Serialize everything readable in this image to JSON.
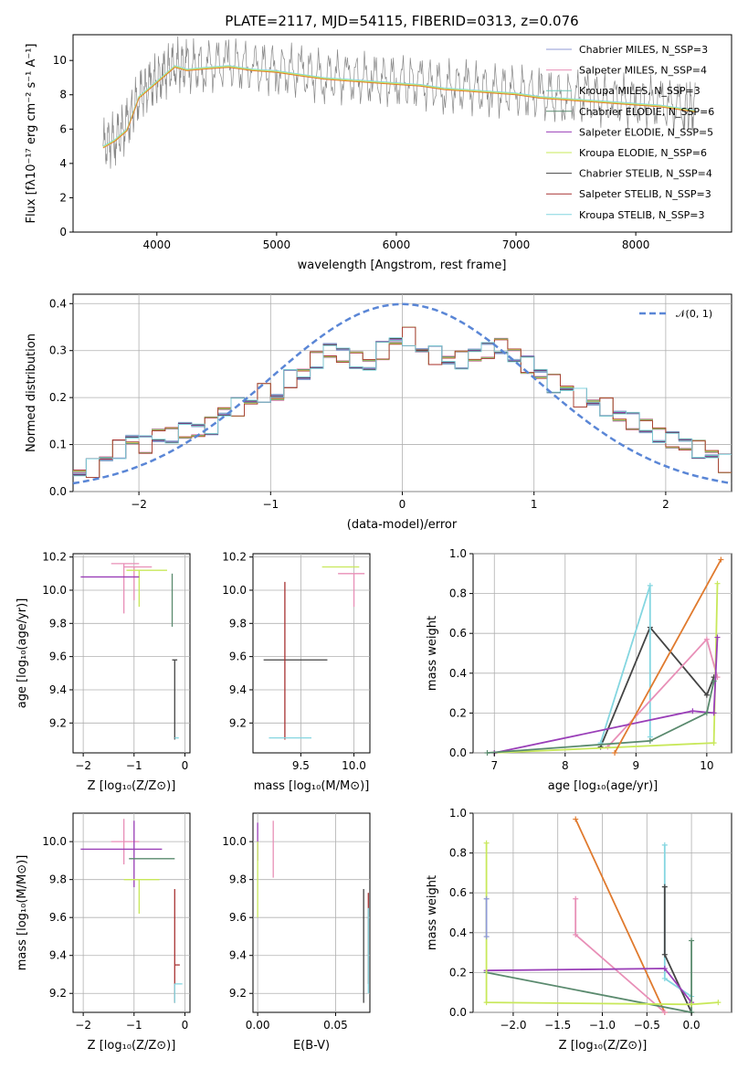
{
  "figure": {
    "title": "PLATE=2117, MJD=54115, FIBERID=0313, z=0.076"
  },
  "colors": {
    "models": [
      "#8f9ad6",
      "#e88fb7",
      "#6fc6b5",
      "#5a8a6e",
      "#9a3fb8",
      "#c8e85a",
      "#444444",
      "#a83333",
      "#84d6e0"
    ],
    "spectrum": "#888888",
    "orange": "#e07a2e",
    "normal": "#5a86d6"
  },
  "chart_data": [
    {
      "id": "spectrum",
      "type": "line",
      "title": "PLATE=2117, MJD=54115, FIBERID=0313, z=0.076",
      "xlabel": "wavelength [Angstrom, rest frame]",
      "ylabel": "Flux [fλ10⁻¹⁷ erg cm⁻² s⁻¹ A⁻¹]",
      "xlim": [
        3300,
        8800
      ],
      "ylim": [
        0,
        11.5
      ],
      "xticks": [
        "4000",
        "5000",
        "6000",
        "7000",
        "8000"
      ],
      "yticks": [
        "0",
        "2",
        "4",
        "6",
        "8",
        "10"
      ],
      "legend_placement": "right",
      "legend": [
        "Chabrier MILES, N_SSP=3",
        "Salpeter MILES, N_SSP=4",
        "Kroupa MILES, N_SSP=3",
        "Chabrier ELODIE, N_SSP=6",
        "Salpeter ELODIE, N_SSP=5",
        "Kroupa ELODIE, N_SSP=6",
        "Chabrier STELIB, N_SSP=4",
        "Salpeter STELIB, N_SSP=3",
        "Kroupa STELIB, N_SSP=3"
      ],
      "series": [
        {
          "name": "data",
          "x": [
            3550,
            3650,
            3750,
            3850,
            3950,
            4050,
            4150,
            4250,
            4400,
            4600,
            4800,
            5000,
            5200,
            5400,
            5600,
            5800,
            6000,
            6200,
            6400,
            6600,
            6800,
            7000,
            7200,
            7400,
            7600,
            7800,
            8000,
            8200,
            8400,
            8500
          ],
          "y": [
            5.0,
            5.5,
            6.2,
            8.0,
            8.6,
            9.2,
            9.8,
            9.6,
            9.7,
            9.8,
            9.6,
            9.5,
            9.3,
            9.1,
            9.0,
            8.9,
            8.8,
            8.7,
            8.5,
            8.4,
            8.3,
            8.2,
            8.0,
            7.9,
            7.8,
            7.7,
            7.6,
            7.5,
            7.3,
            7.2
          ]
        },
        {
          "name": "model",
          "x": [
            3550,
            3650,
            3750,
            3850,
            3950,
            4050,
            4150,
            4250,
            4400,
            4600,
            4800,
            5000,
            5200,
            5400,
            5600,
            5800,
            6000,
            6200,
            6400,
            6600,
            6800,
            7000,
            7200,
            7400,
            7600,
            7800,
            8000,
            8200,
            8400,
            8500
          ],
          "y": [
            5.0,
            5.4,
            6.0,
            7.9,
            8.5,
            9.1,
            9.7,
            9.5,
            9.6,
            9.7,
            9.5,
            9.4,
            9.2,
            9.0,
            8.9,
            8.8,
            8.7,
            8.6,
            8.4,
            8.3,
            8.2,
            8.1,
            7.9,
            7.8,
            7.7,
            7.6,
            7.5,
            7.4,
            7.2,
            7.1
          ]
        }
      ]
    },
    {
      "id": "residuals",
      "type": "line",
      "xlabel": "(data-model)/error",
      "ylabel": "Normed distribution",
      "xlim": [
        -2.5,
        2.5
      ],
      "ylim": [
        0,
        0.42
      ],
      "xticks": [
        "−2",
        "−1",
        "0",
        "1",
        "2"
      ],
      "yticks": [
        "0.0",
        "0.1",
        "0.2",
        "0.3",
        "0.4"
      ],
      "grid": true,
      "legend_placement": "top-right",
      "legend": [
        "𝒩(0, 1)"
      ],
      "bin_width": 0.1,
      "x": [
        -2.5,
        -2.4,
        -2.3,
        -2.2,
        -2.1,
        -2.0,
        -1.9,
        -1.8,
        -1.7,
        -1.6,
        -1.5,
        -1.4,
        -1.3,
        -1.2,
        -1.1,
        -1.0,
        -0.9,
        -0.8,
        -0.7,
        -0.6,
        -0.5,
        -0.4,
        -0.3,
        -0.2,
        -0.1,
        0.0,
        0.1,
        0.2,
        0.3,
        0.4,
        0.5,
        0.6,
        0.7,
        0.8,
        0.9,
        1.0,
        1.1,
        1.2,
        1.3,
        1.4,
        1.5,
        1.6,
        1.7,
        1.8,
        1.9,
        2.0,
        2.1,
        2.2,
        2.3,
        2.4
      ],
      "series": [
        {
          "name": "histogram",
          "values": [
            0.04,
            0.05,
            0.07,
            0.09,
            0.11,
            0.1,
            0.12,
            0.12,
            0.13,
            0.13,
            0.14,
            0.17,
            0.18,
            0.19,
            0.21,
            0.2,
            0.24,
            0.25,
            0.28,
            0.3,
            0.29,
            0.28,
            0.27,
            0.3,
            0.32,
            0.33,
            0.3,
            0.29,
            0.28,
            0.28,
            0.29,
            0.3,
            0.31,
            0.29,
            0.27,
            0.25,
            0.23,
            0.22,
            0.2,
            0.19,
            0.18,
            0.16,
            0.15,
            0.14,
            0.12,
            0.11,
            0.1,
            0.09,
            0.08,
            0.06
          ]
        }
      ]
    },
    {
      "id": "age-vs-Z",
      "type": "scatter",
      "xlabel": "Z [log₁₀(Z/Z⊙)]",
      "ylabel": "age  [log₁₀(age/yr)]",
      "xlim": [
        -2.2,
        0.1
      ],
      "ylim": [
        9.02,
        10.22
      ],
      "xticks": [
        "−2",
        "−1",
        "0"
      ],
      "yticks": [
        "9.2",
        "9.4",
        "9.6",
        "9.8",
        "10.0",
        "10.2"
      ],
      "grid": true,
      "points": [
        {
          "x": -1.2,
          "y": 10.16,
          "xerr": [
            0.25,
            0.3
          ],
          "yerr": [
            0.3,
            0.0
          ],
          "color": 1
        },
        {
          "x": -1.0,
          "y": 10.14,
          "xerr": [
            0.2,
            0.35
          ],
          "yerr": [
            0.2,
            0.0
          ],
          "color": 1
        },
        {
          "x": -0.9,
          "y": 10.12,
          "xerr": [
            0.25,
            0.55
          ],
          "yerr": [
            0.22,
            0.0
          ],
          "color": 5
        },
        {
          "x": -1.2,
          "y": 10.08,
          "xerr": [
            0.85,
            0.3
          ],
          "yerr": [
            0.0,
            0.0
          ],
          "color": 4
        },
        {
          "x": -0.25,
          "y": 10.1,
          "xerr": [
            0.0,
            0.0
          ],
          "yerr": [
            0.32,
            0.0
          ],
          "color": 3
        },
        {
          "x": -0.2,
          "y": 9.58,
          "xerr": [
            0.05,
            0.05
          ],
          "yerr": [
            0.48,
            0.0
          ],
          "color": 6
        },
        {
          "x": -0.2,
          "y": 9.11,
          "xerr": [
            0.0,
            0.08
          ],
          "yerr": [
            0.0,
            0.0
          ],
          "color": 8
        }
      ]
    },
    {
      "id": "age-vs-mass",
      "type": "scatter",
      "xlabel": "mass [log₁₀(M/M⊙)]",
      "xlim": [
        9.05,
        10.15
      ],
      "ylim": [
        9.02,
        10.22
      ],
      "xticks": [
        "9.5",
        "10.0"
      ],
      "yticks": [
        "9.2",
        "9.4",
        "9.6",
        "9.8",
        "10.0",
        "10.2"
      ],
      "grid": true,
      "points": [
        {
          "x": 9.95,
          "y": 10.14,
          "xerr": [
            0.25,
            0.1
          ],
          "yerr": [
            0.0,
            0.0
          ],
          "color": 5
        },
        {
          "x": 10.0,
          "y": 10.1,
          "xerr": [
            0.15,
            0.1
          ],
          "yerr": [
            0.2,
            0.0
          ],
          "color": 1
        },
        {
          "x": 9.35,
          "y": 9.58,
          "xerr": [
            0.2,
            0.4
          ],
          "yerr": [
            0.0,
            0.0
          ],
          "color": 6
        },
        {
          "x": 9.35,
          "y": 9.6,
          "xerr": [
            0.0,
            0.0
          ],
          "yerr": [
            0.5,
            0.45
          ],
          "color": 7
        },
        {
          "x": 9.3,
          "y": 9.11,
          "xerr": [
            0.1,
            0.3
          ],
          "yerr": [
            0.0,
            0.0
          ],
          "color": 8
        }
      ]
    },
    {
      "id": "weight-vs-age",
      "type": "line",
      "xlabel": "age  [log₁₀(age/yr)]",
      "ylabel": "mass weight",
      "xlim": [
        6.7,
        10.35
      ],
      "ylim": [
        0,
        1
      ],
      "xticks": [
        "7",
        "8",
        "9",
        "10"
      ],
      "yticks": [
        "0.0",
        "0.2",
        "0.4",
        "0.6",
        "0.8",
        "1.0"
      ],
      "grid": true,
      "series": [
        {
          "color": 6,
          "x": [
            8.5,
            9.2,
            10.0,
            10.1
          ],
          "y": [
            0.03,
            0.63,
            0.29,
            0.38
          ]
        },
        {
          "color": 8,
          "x": [
            8.5,
            9.2,
            9.2
          ],
          "y": [
            0.05,
            0.84,
            0.08
          ]
        },
        {
          "color": 1,
          "x": [
            8.6,
            10.0,
            10.15
          ],
          "y": [
            0.03,
            0.57,
            0.38
          ]
        },
        {
          "color": 5,
          "x": [
            7.0,
            10.1,
            10.15
          ],
          "y": [
            0.0,
            0.05,
            0.85
          ]
        },
        {
          "color": 4,
          "x": [
            7.0,
            9.8,
            10.1,
            10.15
          ],
          "y": [
            0.0,
            0.21,
            0.2,
            0.58
          ]
        },
        {
          "color": 3,
          "x": [
            6.9,
            9.2,
            10.0,
            10.1
          ],
          "y": [
            0.0,
            0.06,
            0.2,
            0.36
          ]
        },
        {
          "color": 2,
          "x": [
            8.7,
            10.2
          ],
          "y": [
            0.0,
            0.97
          ]
        }
      ]
    },
    {
      "id": "mass-vs-Z",
      "type": "scatter",
      "xlabel": "Z [log₁₀(Z/Z⊙)]",
      "ylabel": "mass [log₁₀(M/M⊙)]",
      "xlim": [
        -2.2,
        0.1
      ],
      "ylim": [
        9.1,
        10.15
      ],
      "xticks": [
        "−2",
        "−1",
        "0"
      ],
      "yticks": [
        "9.2",
        "9.4",
        "9.6",
        "9.8",
        "10.0"
      ],
      "grid": true,
      "points": [
        {
          "x": -1.2,
          "y": 10.0,
          "xerr": [
            0.25,
            0.3
          ],
          "yerr": [
            0.12,
            0.12
          ],
          "color": 1
        },
        {
          "x": -1.0,
          "y": 9.96,
          "xerr": [
            1.05,
            0.55
          ],
          "yerr": [
            0.2,
            0.15
          ],
          "color": 4
        },
        {
          "x": -0.9,
          "y": 9.8,
          "xerr": [
            0.3,
            0.4
          ],
          "yerr": [
            0.18,
            0.0
          ],
          "color": 5
        },
        {
          "x": -0.6,
          "y": 9.91,
          "xerr": [
            0.5,
            0.4
          ],
          "yerr": [
            0.0,
            0.0
          ],
          "color": 3
        },
        {
          "x": -0.2,
          "y": 9.35,
          "xerr": [
            0.0,
            0.1
          ],
          "yerr": [
            0.2,
            0.4
          ],
          "color": 7
        },
        {
          "x": -0.2,
          "y": 9.25,
          "xerr": [
            0.0,
            0.15
          ],
          "yerr": [
            0.1,
            0.0
          ],
          "color": 8
        }
      ]
    },
    {
      "id": "mass-vs-EBV",
      "type": "scatter",
      "xlabel": "E(B-V)",
      "xlim": [
        -0.003,
        0.072
      ],
      "ylim": [
        9.1,
        10.15
      ],
      "xticks": [
        "0.00",
        "0.05"
      ],
      "yticks": [
        "9.2",
        "9.4",
        "9.6",
        "9.8",
        "10.0"
      ],
      "grid": true,
      "points": [
        {
          "x": 0.0,
          "y": 10.05,
          "xerr": [
            0,
            0
          ],
          "yerr": [
            0.15,
            0.05
          ],
          "color": 4
        },
        {
          "x": 0.01,
          "y": 9.96,
          "xerr": [
            0,
            0
          ],
          "yerr": [
            0.15,
            0.15
          ],
          "color": 1
        },
        {
          "x": 0.0,
          "y": 9.8,
          "xerr": [
            0,
            0
          ],
          "yerr": [
            0.2,
            0.2
          ],
          "color": 5
        },
        {
          "x": 0.068,
          "y": 9.4,
          "xerr": [
            0,
            0
          ],
          "yerr": [
            0.25,
            0.35
          ],
          "color": 6
        },
        {
          "x": 0.071,
          "y": 9.35,
          "xerr": [
            0,
            0
          ],
          "yerr": [
            0.1,
            0.38
          ],
          "color": 7
        },
        {
          "x": 0.071,
          "y": 9.45,
          "xerr": [
            0,
            0
          ],
          "yerr": [
            0.25,
            0.2
          ],
          "color": 8
        }
      ]
    },
    {
      "id": "weight-vs-Z",
      "type": "line",
      "xlabel": "Z [log₁₀(Z/Z⊙)]",
      "ylabel": "mass weight",
      "xlim": [
        -2.45,
        0.45
      ],
      "ylim": [
        0,
        1
      ],
      "xticks": [
        "−2.0",
        "−1.5",
        "−1.0",
        "−0.5",
        "0.0"
      ],
      "yticks": [
        "0.0",
        "0.2",
        "0.4",
        "0.6",
        "0.8",
        "1.0"
      ],
      "grid": true,
      "series": [
        {
          "color": 2,
          "x": [
            -1.3,
            -0.3
          ],
          "y": [
            0.97,
            0.0
          ]
        },
        {
          "color": 1,
          "x": [
            -1.3,
            -1.3,
            -0.3
          ],
          "y": [
            0.57,
            0.39,
            0.0
          ]
        },
        {
          "color": 8,
          "x": [
            -0.3,
            -0.3,
            0.0
          ],
          "y": [
            0.84,
            0.17,
            0.08
          ]
        },
        {
          "color": 6,
          "x": [
            -0.3,
            -0.3,
            0.0
          ],
          "y": [
            0.63,
            0.29,
            0.0
          ]
        },
        {
          "color": 4,
          "x": [
            -2.3,
            -0.3,
            0.0
          ],
          "y": [
            0.21,
            0.22,
            0.05
          ]
        },
        {
          "color": 3,
          "x": [
            -2.3,
            0.0,
            0.0
          ],
          "y": [
            0.2,
            0.0,
            0.36
          ]
        },
        {
          "color": 5,
          "x": [
            -2.3,
            -2.3,
            0.0,
            0.3
          ],
          "y": [
            0.85,
            0.05,
            0.04,
            0.05
          ]
        },
        {
          "color": 0,
          "x": [
            -2.3,
            -2.3
          ],
          "y": [
            0.57,
            0.38
          ]
        }
      ]
    }
  ]
}
